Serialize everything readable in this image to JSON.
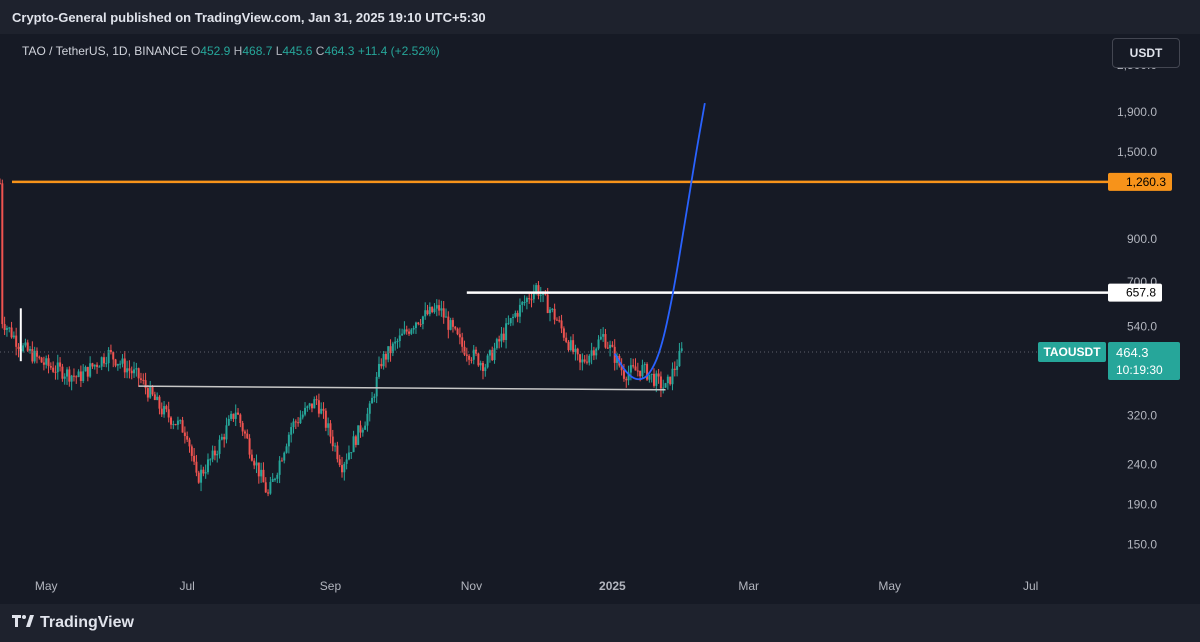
{
  "header": {
    "title": "Crypto-General published on TradingView.com, Jan 31, 2025 19:10 UTC+5:30"
  },
  "legend": {
    "symbol": "TAO / TetherUS, 1D, BINANCE",
    "open_label": "O",
    "open": "452.9",
    "high_label": "H",
    "high": "468.7",
    "low_label": "L",
    "low": "445.6",
    "close_label": "C",
    "close": "464.3",
    "change": "+11.4 (+2.52%)"
  },
  "toolbar": {
    "unit_label": "USDT"
  },
  "footer": {
    "brand": "TradingView",
    "logo_icon": "tradingview-logo-icon"
  },
  "colors": {
    "bg": "#161a25",
    "up": "#26a69a",
    "down": "#ef5350",
    "resistance": "#f7931a",
    "level": "#ffffff",
    "curve": "#2962ff",
    "support": "#c8c8c8"
  },
  "chart_data": {
    "type": "candlestick",
    "symbol": "TAO / TetherUS",
    "interval": "1D",
    "exchange": "BINANCE",
    "scale": "log",
    "ylim": [
      130,
      3000
    ],
    "y_ticks": [
      "2,500.0",
      "1,900.0",
      "1,500.0",
      "900.0",
      "700.0",
      "540.0",
      "320.0",
      "240.0",
      "190.0",
      "150.0"
    ],
    "x_ticks": [
      "May",
      "Jul",
      "Sep",
      "Nov",
      "2025",
      "Mar",
      "May",
      "Jul"
    ],
    "x_start": "2024-04-11",
    "x_end": "2025-07-31",
    "last_date": "2025-01-31",
    "last_price": {
      "symbol_label": "TAOUSDT",
      "price": "464.3",
      "countdown": "10:19:30"
    },
    "price_levels": [
      {
        "label": "1,260.3",
        "value": 1260.3,
        "color": "#f7931a"
      },
      {
        "label": "657.8",
        "value": 657.8,
        "color": "#ffffff"
      }
    ],
    "support_line": {
      "start": "2024-06-10",
      "end": "2025-01-24",
      "y_start": 380,
      "y_end": 372
    },
    "projection_curve": [
      [
        "2025-01-02",
        460
      ],
      [
        "2025-01-07",
        410
      ],
      [
        "2025-01-12",
        392
      ],
      [
        "2025-01-17",
        405
      ],
      [
        "2025-01-22",
        470
      ],
      [
        "2025-01-27",
        640
      ],
      [
        "2025-02-01",
        960
      ],
      [
        "2025-02-06",
        1470
      ],
      [
        "2025-02-10",
        2000
      ]
    ],
    "ohlc_anchors": [
      [
        "2024-04-11",
        1250
      ],
      [
        "2024-04-12",
        560
      ],
      [
        "2024-04-20",
        480
      ],
      [
        "2024-05-01",
        430
      ],
      [
        "2024-05-15",
        400
      ],
      [
        "2024-05-28",
        460
      ],
      [
        "2024-06-10",
        400
      ],
      [
        "2024-06-20",
        330
      ],
      [
        "2024-07-01",
        290
      ],
      [
        "2024-07-05",
        220
      ],
      [
        "2024-07-12",
        250
      ],
      [
        "2024-07-22",
        330
      ],
      [
        "2024-08-05",
        200
      ],
      [
        "2024-08-15",
        300
      ],
      [
        "2024-08-26",
        350
      ],
      [
        "2024-09-06",
        240
      ],
      [
        "2024-09-18",
        330
      ],
      [
        "2024-09-23",
        440
      ],
      [
        "2024-10-08",
        560
      ],
      [
        "2024-10-18",
        600
      ],
      [
        "2024-10-28",
        480
      ],
      [
        "2024-11-07",
        430
      ],
      [
        "2024-11-20",
        580
      ],
      [
        "2024-11-29",
        680
      ],
      [
        "2024-12-08",
        560
      ],
      [
        "2024-12-18",
        430
      ],
      [
        "2024-12-28",
        510
      ],
      [
        "2025-01-06",
        410
      ],
      [
        "2025-01-14",
        420
      ],
      [
        "2025-01-24",
        375
      ],
      [
        "2025-01-31",
        464.3
      ]
    ]
  }
}
